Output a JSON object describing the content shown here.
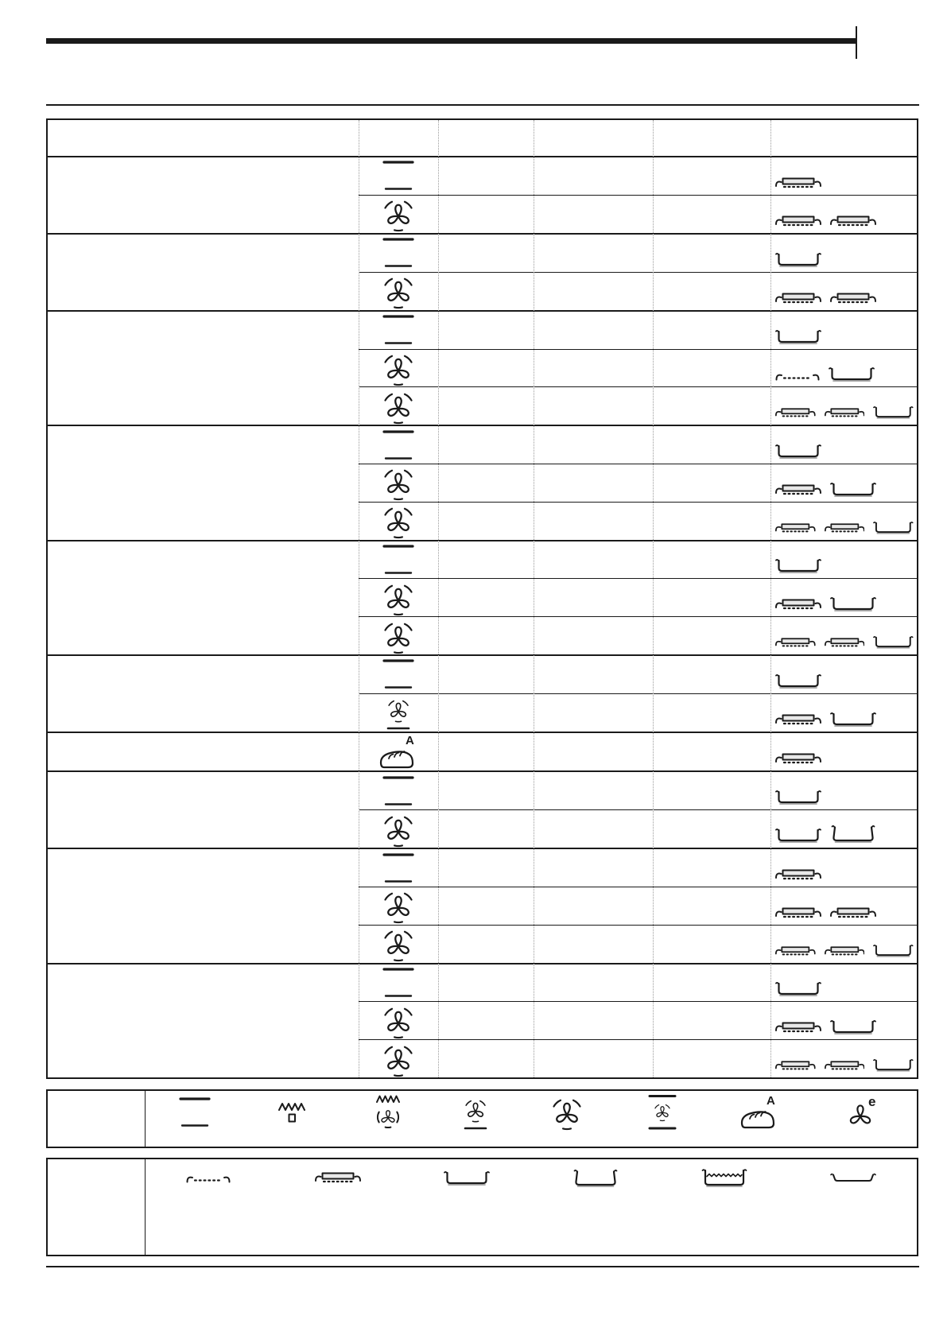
{
  "page": {
    "background": "#ffffff"
  },
  "colors": {
    "ink": "#1a1a1a",
    "grid_dash": "#9a9a9a",
    "tray_fill": "#e8e8e8",
    "pan_shadow": "#8f8f8f"
  },
  "icon_letters": {
    "bread-auto": "A",
    "eco-fan": "e"
  },
  "cooking_table": {
    "column_count": 6,
    "header_cells": [
      "",
      "",
      "",
      "",
      "",
      ""
    ],
    "groups": [
      {
        "rows": [
          {
            "mode": "top-bottom-heat",
            "accessories": [
              "tray-on-shelf"
            ]
          },
          {
            "mode": "true-fan",
            "accessories": [
              "tray-on-shelf",
              "tray-on-shelf"
            ]
          }
        ]
      },
      {
        "rows": [
          {
            "mode": "top-bottom-heat",
            "accessories": [
              "shallow-pan"
            ]
          },
          {
            "mode": "true-fan",
            "accessories": [
              "tray-on-shelf",
              "tray-on-shelf"
            ]
          }
        ]
      },
      {
        "rows": [
          {
            "mode": "top-bottom-heat",
            "accessories": [
              "shallow-pan"
            ]
          },
          {
            "mode": "true-fan",
            "accessories": [
              "wire-shelf",
              "shallow-pan"
            ]
          },
          {
            "mode": "true-fan",
            "accessories": [
              "tray-on-shelf",
              "tray-on-shelf",
              "shallow-pan"
            ]
          }
        ]
      },
      {
        "rows": [
          {
            "mode": "top-bottom-heat",
            "accessories": [
              "shallow-pan"
            ]
          },
          {
            "mode": "true-fan",
            "accessories": [
              "tray-on-shelf",
              "shallow-pan"
            ]
          },
          {
            "mode": "true-fan",
            "accessories": [
              "tray-on-shelf",
              "tray-on-shelf",
              "shallow-pan"
            ]
          }
        ]
      },
      {
        "rows": [
          {
            "mode": "top-bottom-heat",
            "accessories": [
              "shallow-pan"
            ]
          },
          {
            "mode": "true-fan",
            "accessories": [
              "tray-on-shelf",
              "shallow-pan"
            ]
          },
          {
            "mode": "true-fan",
            "accessories": [
              "tray-on-shelf",
              "tray-on-shelf",
              "shallow-pan"
            ]
          }
        ]
      },
      {
        "rows": [
          {
            "mode": "top-bottom-heat",
            "accessories": [
              "shallow-pan"
            ]
          },
          {
            "mode": "fan-bottom-heat",
            "accessories": [
              "tray-on-shelf",
              "shallow-pan"
            ]
          }
        ]
      },
      {
        "rows": [
          {
            "mode": "bread-auto",
            "accessories": [
              "tray-on-shelf"
            ]
          }
        ]
      },
      {
        "rows": [
          {
            "mode": "top-bottom-heat",
            "accessories": [
              "shallow-pan"
            ]
          },
          {
            "mode": "true-fan",
            "accessories": [
              "shallow-pan",
              "deep-pan"
            ]
          }
        ]
      },
      {
        "rows": [
          {
            "mode": "top-bottom-heat",
            "accessories": [
              "tray-on-shelf"
            ]
          },
          {
            "mode": "true-fan",
            "accessories": [
              "tray-on-shelf",
              "tray-on-shelf"
            ]
          },
          {
            "mode": "true-fan",
            "accessories": [
              "tray-on-shelf",
              "tray-on-shelf",
              "shallow-pan"
            ]
          }
        ]
      },
      {
        "rows": [
          {
            "mode": "top-bottom-heat",
            "accessories": [
              "shallow-pan"
            ]
          },
          {
            "mode": "true-fan",
            "accessories": [
              "tray-on-shelf",
              "shallow-pan"
            ]
          },
          {
            "mode": "true-fan",
            "accessories": [
              "tray-on-shelf",
              "tray-on-shelf",
              "shallow-pan"
            ]
          }
        ]
      }
    ]
  },
  "modes_legend": {
    "icons": [
      "top-bottom-heat",
      "grill",
      "turbo-grill",
      "fan-bottom-heat",
      "true-fan",
      "top-bottom-fan",
      "bread-auto",
      "eco-fan"
    ]
  },
  "accessories_legend": {
    "icons": [
      "wire-shelf",
      "tray-on-shelf",
      "shallow-pan",
      "deep-pan",
      "water-pan",
      "flat-dish"
    ]
  }
}
